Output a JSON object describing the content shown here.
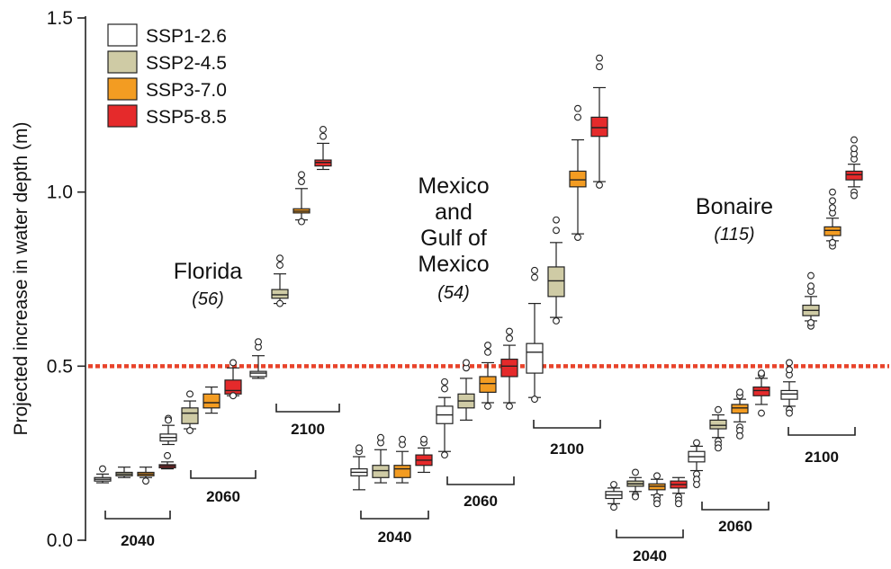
{
  "chart_data": {
    "type": "box",
    "ylabel": "Projected increase in water depth (m)",
    "ylim": [
      0,
      1.5
    ],
    "yticks": [
      "0.0",
      "0.5",
      "1.0",
      "1.5"
    ],
    "reference_line": {
      "y": 0.5,
      "color": "#e8432a",
      "style": "dotted"
    },
    "scenarios": [
      {
        "name": "SSP1-2.6",
        "color": "#ffffff"
      },
      {
        "name": "SSP2-4.5",
        "color": "#cfcba5"
      },
      {
        "name": "SSP3-7.0",
        "color": "#f39c22"
      },
      {
        "name": "SSP5-8.5",
        "color": "#e52a2b"
      }
    ],
    "legend_position": "top-left",
    "regions": [
      {
        "name_lines": [
          "Florida"
        ],
        "count": "(56)",
        "groups": [
          {
            "year": "2040",
            "boxes": [
              {
                "scenario": "SSP1-2.6",
                "q1": 0.17,
                "median": 0.175,
                "q3": 0.18,
                "whisker_low": 0.165,
                "whisker_high": 0.19,
                "outliers": [
                  0.205
                ]
              },
              {
                "scenario": "SSP2-4.5",
                "q1": 0.185,
                "median": 0.19,
                "q3": 0.195,
                "whisker_low": 0.18,
                "whisker_high": 0.21,
                "outliers": []
              },
              {
                "scenario": "SSP3-7.0",
                "q1": 0.185,
                "median": 0.19,
                "q3": 0.195,
                "whisker_low": 0.18,
                "whisker_high": 0.21,
                "outliers": [
                  0.17
                ]
              },
              {
                "scenario": "SSP5-8.5",
                "q1": 0.208,
                "median": 0.213,
                "q3": 0.217,
                "whisker_low": 0.205,
                "whisker_high": 0.225,
                "outliers": [
                  0.243
                ]
              }
            ]
          },
          {
            "year": "2060",
            "boxes": [
              {
                "scenario": "SSP1-2.6",
                "q1": 0.285,
                "median": 0.295,
                "q3": 0.305,
                "whisker_low": 0.275,
                "whisker_high": 0.33,
                "outliers": [
                  0.35,
                  0.345
                ]
              },
              {
                "scenario": "SSP2-4.5",
                "q1": 0.335,
                "median": 0.365,
                "q3": 0.38,
                "whisker_low": 0.32,
                "whisker_high": 0.4,
                "outliers": [
                  0.42,
                  0.315
                ]
              },
              {
                "scenario": "SSP3-7.0",
                "q1": 0.38,
                "median": 0.395,
                "q3": 0.42,
                "whisker_low": 0.365,
                "whisker_high": 0.44,
                "outliers": []
              },
              {
                "scenario": "SSP5-8.5",
                "q1": 0.42,
                "median": 0.43,
                "q3": 0.46,
                "whisker_low": 0.415,
                "whisker_high": 0.495,
                "outliers": [
                  0.51,
                  0.415
                ]
              }
            ]
          },
          {
            "year": "2100",
            "boxes": [
              {
                "scenario": "SSP1-2.6",
                "q1": 0.47,
                "median": 0.48,
                "q3": 0.485,
                "whisker_low": 0.465,
                "whisker_high": 0.53,
                "outliers": [
                  0.555,
                  0.57
                ]
              },
              {
                "scenario": "SSP2-4.5",
                "q1": 0.695,
                "median": 0.705,
                "q3": 0.72,
                "whisker_low": 0.68,
                "whisker_high": 0.765,
                "outliers": [
                  0.79,
                  0.81,
                  0.68
                ]
              },
              {
                "scenario": "SSP3-7.0",
                "q1": 0.94,
                "median": 0.945,
                "q3": 0.952,
                "whisker_low": 0.92,
                "whisker_high": 1.01,
                "outliers": [
                  1.03,
                  1.05,
                  0.915
                ]
              },
              {
                "scenario": "SSP5-8.5",
                "q1": 1.075,
                "median": 1.085,
                "q3": 1.092,
                "whisker_low": 1.065,
                "whisker_high": 1.14,
                "outliers": [
                  1.16,
                  1.18
                ]
              }
            ]
          }
        ]
      },
      {
        "name_lines": [
          "Mexico",
          "and",
          "Gulf of",
          "Mexico"
        ],
        "count": "(54)",
        "groups": [
          {
            "year": "2040",
            "boxes": [
              {
                "scenario": "SSP1-2.6",
                "q1": 0.185,
                "median": 0.195,
                "q3": 0.205,
                "whisker_low": 0.145,
                "whisker_high": 0.24,
                "outliers": [
                  0.255,
                  0.265
                ]
              },
              {
                "scenario": "SSP2-4.5",
                "q1": 0.18,
                "median": 0.2,
                "q3": 0.215,
                "whisker_low": 0.165,
                "whisker_high": 0.26,
                "outliers": [
                  0.28,
                  0.295
                ]
              },
              {
                "scenario": "SSP3-7.0",
                "q1": 0.18,
                "median": 0.205,
                "q3": 0.215,
                "whisker_low": 0.165,
                "whisker_high": 0.255,
                "outliers": [
                  0.275,
                  0.29
                ]
              },
              {
                "scenario": "SSP5-8.5",
                "q1": 0.215,
                "median": 0.23,
                "q3": 0.245,
                "whisker_low": 0.195,
                "whisker_high": 0.265,
                "outliers": [
                  0.28,
                  0.29
                ]
              }
            ]
          },
          {
            "year": "2060",
            "boxes": [
              {
                "scenario": "SSP1-2.6",
                "q1": 0.335,
                "median": 0.36,
                "q3": 0.385,
                "whisker_low": 0.255,
                "whisker_high": 0.41,
                "outliers": [
                  0.245,
                  0.435,
                  0.455
                ]
              },
              {
                "scenario": "SSP2-4.5",
                "q1": 0.38,
                "median": 0.4,
                "q3": 0.42,
                "whisker_low": 0.345,
                "whisker_high": 0.465,
                "outliers": [
                  0.495,
                  0.51
                ]
              },
              {
                "scenario": "SSP3-7.0",
                "q1": 0.425,
                "median": 0.45,
                "q3": 0.47,
                "whisker_low": 0.395,
                "whisker_high": 0.51,
                "outliers": [
                  0.385,
                  0.54,
                  0.56
                ]
              },
              {
                "scenario": "SSP5-8.5",
                "q1": 0.47,
                "median": 0.5,
                "q3": 0.52,
                "whisker_low": 0.395,
                "whisker_high": 0.56,
                "outliers": [
                  0.385,
                  0.58,
                  0.6
                ]
              }
            ]
          },
          {
            "year": "2100",
            "boxes": [
              {
                "scenario": "SSP1-2.6",
                "q1": 0.48,
                "median": 0.54,
                "q3": 0.565,
                "whisker_low": 0.41,
                "whisker_high": 0.68,
                "outliers": [
                  0.405,
                  0.755,
                  0.775
                ]
              },
              {
                "scenario": "SSP2-4.5",
                "q1": 0.7,
                "median": 0.745,
                "q3": 0.785,
                "whisker_low": 0.64,
                "whisker_high": 0.855,
                "outliers": [
                  0.63,
                  0.89,
                  0.92
                ]
              },
              {
                "scenario": "SSP3-7.0",
                "q1": 1.015,
                "median": 1.035,
                "q3": 1.06,
                "whisker_low": 0.88,
                "whisker_high": 1.15,
                "outliers": [
                  0.87,
                  1.215,
                  1.24
                ]
              },
              {
                "scenario": "SSP5-8.5",
                "q1": 1.16,
                "median": 1.185,
                "q3": 1.215,
                "whisker_low": 1.03,
                "whisker_high": 1.3,
                "outliers": [
                  1.02,
                  1.36,
                  1.385
                ]
              }
            ]
          }
        ]
      },
      {
        "name_lines": [
          "Bonaire"
        ],
        "count": "(115)",
        "groups": [
          {
            "year": "2040",
            "boxes": [
              {
                "scenario": "SSP1-2.6",
                "q1": 0.12,
                "median": 0.13,
                "q3": 0.14,
                "whisker_low": 0.105,
                "whisker_high": 0.15,
                "outliers": [
                  0.095,
                  0.16
                ]
              },
              {
                "scenario": "SSP2-4.5",
                "q1": 0.155,
                "median": 0.162,
                "q3": 0.17,
                "whisker_low": 0.14,
                "whisker_high": 0.18,
                "outliers": [
                  0.13,
                  0.125,
                  0.195
                ]
              },
              {
                "scenario": "SSP3-7.0",
                "q1": 0.145,
                "median": 0.155,
                "q3": 0.162,
                "whisker_low": 0.13,
                "whisker_high": 0.175,
                "outliers": [
                  0.125,
                  0.115,
                  0.105,
                  0.185
                ]
              },
              {
                "scenario": "SSP5-8.5",
                "q1": 0.15,
                "median": 0.16,
                "q3": 0.17,
                "whisker_low": 0.135,
                "whisker_high": 0.18,
                "outliers": [
                  0.125,
                  0.115,
                  0.105
                ]
              }
            ]
          },
          {
            "year": "2060",
            "boxes": [
              {
                "scenario": "SSP1-2.6",
                "q1": 0.225,
                "median": 0.24,
                "q3": 0.255,
                "whisker_low": 0.2,
                "whisker_high": 0.27,
                "outliers": [
                  0.19,
                  0.175,
                  0.16,
                  0.28
                ]
              },
              {
                "scenario": "SSP2-4.5",
                "q1": 0.32,
                "median": 0.33,
                "q3": 0.345,
                "whisker_low": 0.295,
                "whisker_high": 0.36,
                "outliers": [
                  0.285,
                  0.275,
                  0.265,
                  0.375
                ]
              },
              {
                "scenario": "SSP3-7.0",
                "q1": 0.365,
                "median": 0.38,
                "q3": 0.39,
                "whisker_low": 0.34,
                "whisker_high": 0.405,
                "outliers": [
                  0.325,
                  0.315,
                  0.3,
                  0.415,
                  0.425
                ]
              },
              {
                "scenario": "SSP5-8.5",
                "q1": 0.415,
                "median": 0.43,
                "q3": 0.44,
                "whisker_low": 0.39,
                "whisker_high": 0.465,
                "outliers": [
                  0.365,
                  0.475,
                  0.48
                ]
              }
            ]
          },
          {
            "year": "2100",
            "boxes": [
              {
                "scenario": "SSP1-2.6",
                "q1": 0.405,
                "median": 0.42,
                "q3": 0.43,
                "whisker_low": 0.385,
                "whisker_high": 0.455,
                "outliers": [
                  0.375,
                  0.365,
                  0.475,
                  0.49,
                  0.51
                ]
              },
              {
                "scenario": "SSP2-4.5",
                "q1": 0.645,
                "median": 0.66,
                "q3": 0.675,
                "whisker_low": 0.63,
                "whisker_high": 0.7,
                "outliers": [
                  0.615,
                  0.625,
                  0.715,
                  0.73,
                  0.76
                ]
              },
              {
                "scenario": "SSP3-7.0",
                "q1": 0.875,
                "median": 0.89,
                "q3": 0.9,
                "whisker_low": 0.86,
                "whisker_high": 0.925,
                "outliers": [
                  0.845,
                  0.855,
                  0.94,
                  0.955,
                  0.975,
                  1.0
                ]
              },
              {
                "scenario": "SSP5-8.5",
                "q1": 1.035,
                "median": 1.05,
                "q3": 1.06,
                "whisker_low": 1.015,
                "whisker_high": 1.08,
                "outliers": [
                  1.0,
                  0.99,
                  1.095,
                  1.11,
                  1.125,
                  1.15
                ]
              }
            ]
          }
        ]
      }
    ]
  }
}
